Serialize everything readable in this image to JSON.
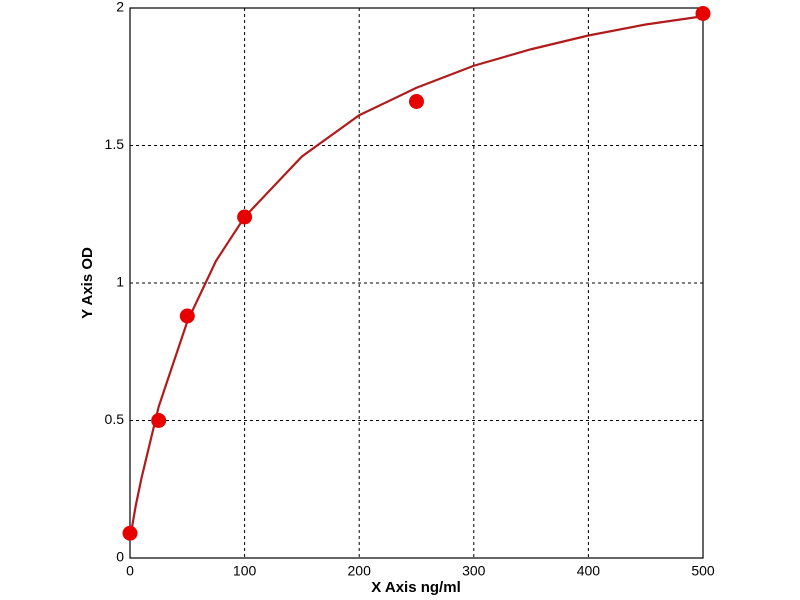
{
  "chart_data": {
    "type": "scatter",
    "xlabel": "X Axis ng/ml",
    "ylabel": "Y Axis OD",
    "xlim": [
      0,
      500
    ],
    "ylim": [
      0,
      2
    ],
    "xticks": [
      0,
      100,
      200,
      300,
      400,
      500
    ],
    "yticks": [
      0,
      0.5,
      1,
      1.5,
      2
    ],
    "grid": true,
    "series": [
      {
        "color": "#b01c1c",
        "line": true,
        "x": [
          0,
          5,
          10,
          25,
          50,
          75,
          100,
          150,
          200,
          250,
          300,
          350,
          400,
          450,
          500
        ],
        "values": [
          0.07,
          0.19,
          0.29,
          0.55,
          0.86,
          1.08,
          1.24,
          1.46,
          1.61,
          1.71,
          1.79,
          1.85,
          1.9,
          1.94,
          1.97
        ]
      },
      {
        "color": "#e60000",
        "line": false,
        "x": [
          0,
          25,
          50,
          100,
          250,
          500
        ],
        "values": [
          0.09,
          0.5,
          0.88,
          1.24,
          1.66,
          1.98
        ]
      }
    ]
  }
}
